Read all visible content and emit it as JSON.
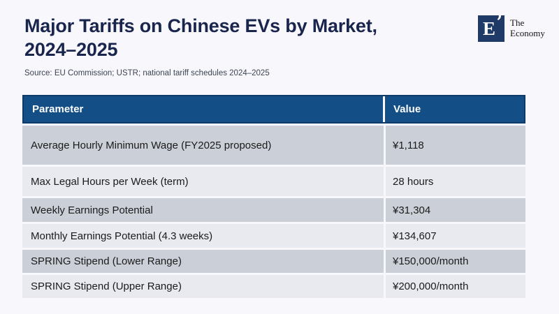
{
  "chart_data": {
    "type": "table",
    "title": "Major Tariffs on Chinese EVs by Market, 2024–2025",
    "title_lines": [
      "Major Tariffs on Chinese EVs by Market,",
      "2024–2025"
    ],
    "source": "Source: EU Commission; USTR; national tariff schedules 2024–2025",
    "columns": [
      "Parameter",
      "Value"
    ],
    "rows": [
      [
        "Average Hourly Minimum Wage (FY2025 proposed)",
        "¥1,118"
      ],
      [
        "Max Legal Hours per Week (term)",
        "28 hours"
      ],
      [
        "Weekly Earnings Potential",
        "¥31,304"
      ],
      [
        "Monthly Earnings Potential (4.3 weeks)",
        "¥134,607"
      ],
      [
        "SPRING Stipend (Lower Range)",
        "¥150,000/month"
      ],
      [
        "SPRING Stipend (Upper Range)",
        "¥200,000/month"
      ]
    ]
  },
  "logo": {
    "monogram": "E",
    "quote_mark": "’",
    "name_line1": "The",
    "name_line2": "Economy"
  },
  "colors": {
    "page_bg": "#F8F8FC",
    "title": "#19254D",
    "header_bg": "#134E87",
    "header_border": "#0D3A66",
    "row_dark": "#CBCFD8",
    "row_light": "#E8EAEF",
    "logo_bg": "#1F3A66"
  }
}
